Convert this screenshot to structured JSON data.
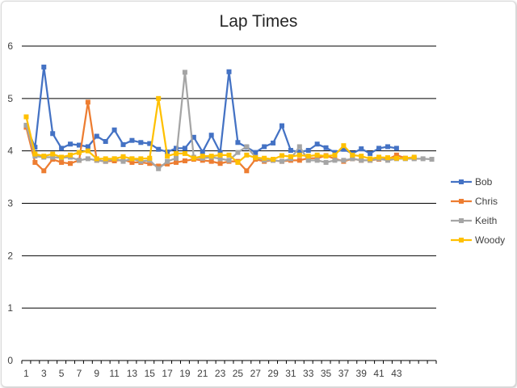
{
  "chart_data": {
    "type": "line",
    "title": "Lap Times",
    "xlabel": "",
    "ylabel": "",
    "ylim": [
      0,
      6
    ],
    "yticks": [
      0,
      1,
      2,
      3,
      4,
      5,
      6
    ],
    "xtick_labels": [
      "1",
      "3",
      "5",
      "7",
      "9",
      "11",
      "13",
      "15",
      "17",
      "19",
      "21",
      "23",
      "25",
      "27",
      "29",
      "31",
      "33",
      "35",
      "37",
      "39",
      "41",
      "43"
    ],
    "grid": "horizontal",
    "legend_position": "right",
    "x": [
      1,
      2,
      3,
      4,
      5,
      6,
      7,
      8,
      9,
      10,
      11,
      12,
      13,
      14,
      15,
      16,
      17,
      18,
      19,
      20,
      21,
      22,
      23,
      24,
      25,
      26,
      27,
      28,
      29,
      30,
      31,
      32,
      33,
      34,
      35,
      36,
      37,
      38,
      39,
      40,
      41,
      42,
      43,
      44,
      45,
      46,
      47
    ],
    "series": [
      {
        "name": "Bob",
        "color": "#4472c4",
        "marker": "square",
        "values": [
          4.47,
          4.07,
          5.6,
          4.33,
          4.05,
          4.13,
          4.11,
          4.08,
          4.28,
          4.18,
          4.4,
          4.12,
          4.2,
          4.16,
          4.14,
          4.03,
          3.98,
          4.05,
          4.05,
          4.26,
          3.98,
          4.3,
          3.97,
          5.51,
          4.16,
          4.07,
          3.97,
          4.08,
          4.15,
          4.48,
          4.01,
          3.98,
          4.01,
          4.13,
          4.06,
          3.97,
          4.03,
          3.95,
          4.04,
          3.95,
          4.05,
          4.08,
          4.05,
          null,
          null,
          null,
          null
        ]
      },
      {
        "name": "Chris",
        "color": "#ed7d31",
        "marker": "square",
        "values": [
          4.45,
          3.78,
          3.62,
          3.84,
          3.78,
          3.76,
          3.82,
          4.93,
          3.82,
          3.8,
          3.81,
          3.83,
          3.78,
          3.78,
          3.76,
          3.71,
          3.75,
          3.78,
          3.81,
          3.84,
          3.82,
          3.8,
          3.76,
          3.8,
          3.8,
          3.62,
          3.84,
          3.8,
          3.82,
          3.8,
          3.82,
          3.82,
          3.86,
          3.86,
          3.91,
          3.85,
          3.8,
          3.85,
          3.82,
          3.82,
          3.84,
          3.84,
          3.92,
          3.86,
          3.86,
          null,
          null
        ]
      },
      {
        "name": "Keith",
        "color": "#a5a5a5",
        "marker": "square",
        "values": [
          4.49,
          3.9,
          3.88,
          3.88,
          3.87,
          3.88,
          3.82,
          3.85,
          3.82,
          3.8,
          3.85,
          3.8,
          3.85,
          3.8,
          3.82,
          3.66,
          3.8,
          3.86,
          5.5,
          3.88,
          3.86,
          3.88,
          3.85,
          3.82,
          3.97,
          4.08,
          3.88,
          3.82,
          3.82,
          3.8,
          3.85,
          4.08,
          3.82,
          3.82,
          3.78,
          3.82,
          3.82,
          3.85,
          3.82,
          3.82,
          3.85,
          3.82,
          3.85,
          3.85,
          3.85,
          3.85,
          3.84
        ]
      },
      {
        "name": "Woody",
        "color": "#ffc000",
        "marker": "square",
        "values": [
          4.65,
          3.94,
          3.9,
          3.94,
          3.88,
          3.92,
          3.97,
          4.0,
          3.85,
          3.85,
          3.85,
          3.89,
          3.85,
          3.85,
          3.86,
          5.0,
          3.9,
          3.95,
          3.95,
          3.86,
          3.9,
          3.9,
          3.92,
          3.92,
          3.78,
          3.92,
          3.87,
          3.86,
          3.84,
          3.91,
          3.89,
          3.92,
          3.9,
          3.92,
          3.9,
          3.92,
          4.1,
          3.92,
          3.9,
          3.85,
          3.88,
          3.87,
          3.86,
          3.86,
          3.88,
          null,
          null
        ]
      }
    ]
  }
}
